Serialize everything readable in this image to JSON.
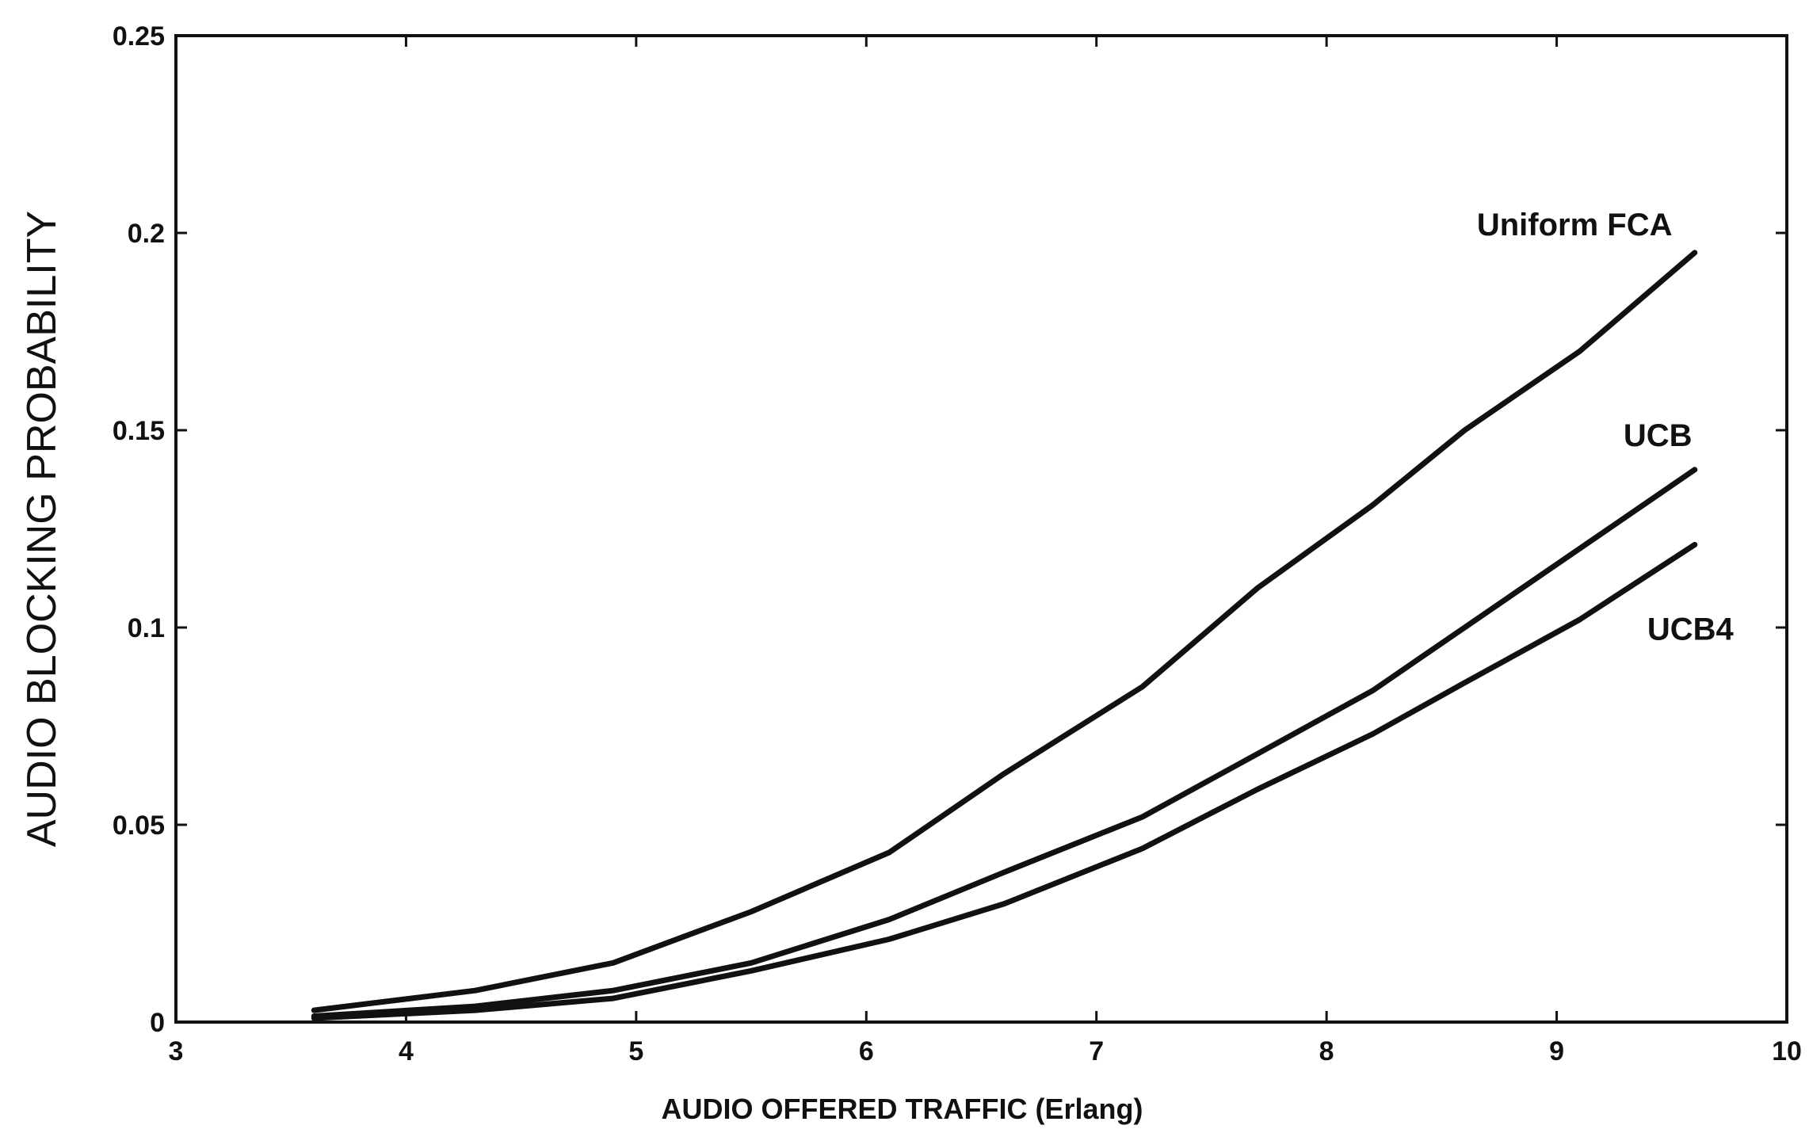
{
  "chart_data": {
    "type": "line",
    "title": "",
    "xlabel": "AUDIO OFFERED TRAFFIC (Erlang)",
    "ylabel": "AUDIO BLOCKING PROBABILITY",
    "xlim": [
      3,
      10
    ],
    "ylim": [
      0,
      0.25
    ],
    "x_ticks": [
      3,
      4,
      5,
      6,
      7,
      8,
      9,
      10
    ],
    "x_tick_labels": [
      "3",
      "4",
      "5",
      "6",
      "7",
      "8",
      "9",
      "10"
    ],
    "y_ticks": [
      0,
      0.05,
      0.1,
      0.15,
      0.2,
      0.25
    ],
    "y_tick_labels": [
      "0",
      "0.05",
      "0.1",
      "0.15",
      "0.2",
      "0.25"
    ],
    "grid": false,
    "legend": "none",
    "series_color": "#111111",
    "series": [
      {
        "name": "Uniform FCA",
        "x": [
          3.6,
          4.3,
          4.9,
          5.5,
          6.1,
          6.6,
          7.2,
          7.7,
          8.2,
          8.6,
          9.1,
          9.6
        ],
        "y": [
          0.003,
          0.008,
          0.015,
          0.028,
          0.043,
          0.063,
          0.085,
          0.11,
          0.131,
          0.15,
          0.17,
          0.195
        ]
      },
      {
        "name": "UCB",
        "x": [
          3.6,
          4.3,
          4.9,
          5.5,
          6.1,
          6.6,
          7.2,
          7.7,
          8.2,
          8.6,
          9.1,
          9.6
        ],
        "y": [
          0.0015,
          0.004,
          0.008,
          0.015,
          0.026,
          0.038,
          0.052,
          0.068,
          0.084,
          0.1,
          0.12,
          0.14
        ]
      },
      {
        "name": "UCB4",
        "x": [
          3.6,
          4.3,
          4.9,
          5.5,
          6.1,
          6.6,
          7.2,
          7.7,
          8.2,
          8.6,
          9.1,
          9.6
        ],
        "y": [
          0.001,
          0.003,
          0.006,
          0.013,
          0.021,
          0.03,
          0.044,
          0.059,
          0.073,
          0.086,
          0.102,
          0.121
        ]
      }
    ]
  }
}
